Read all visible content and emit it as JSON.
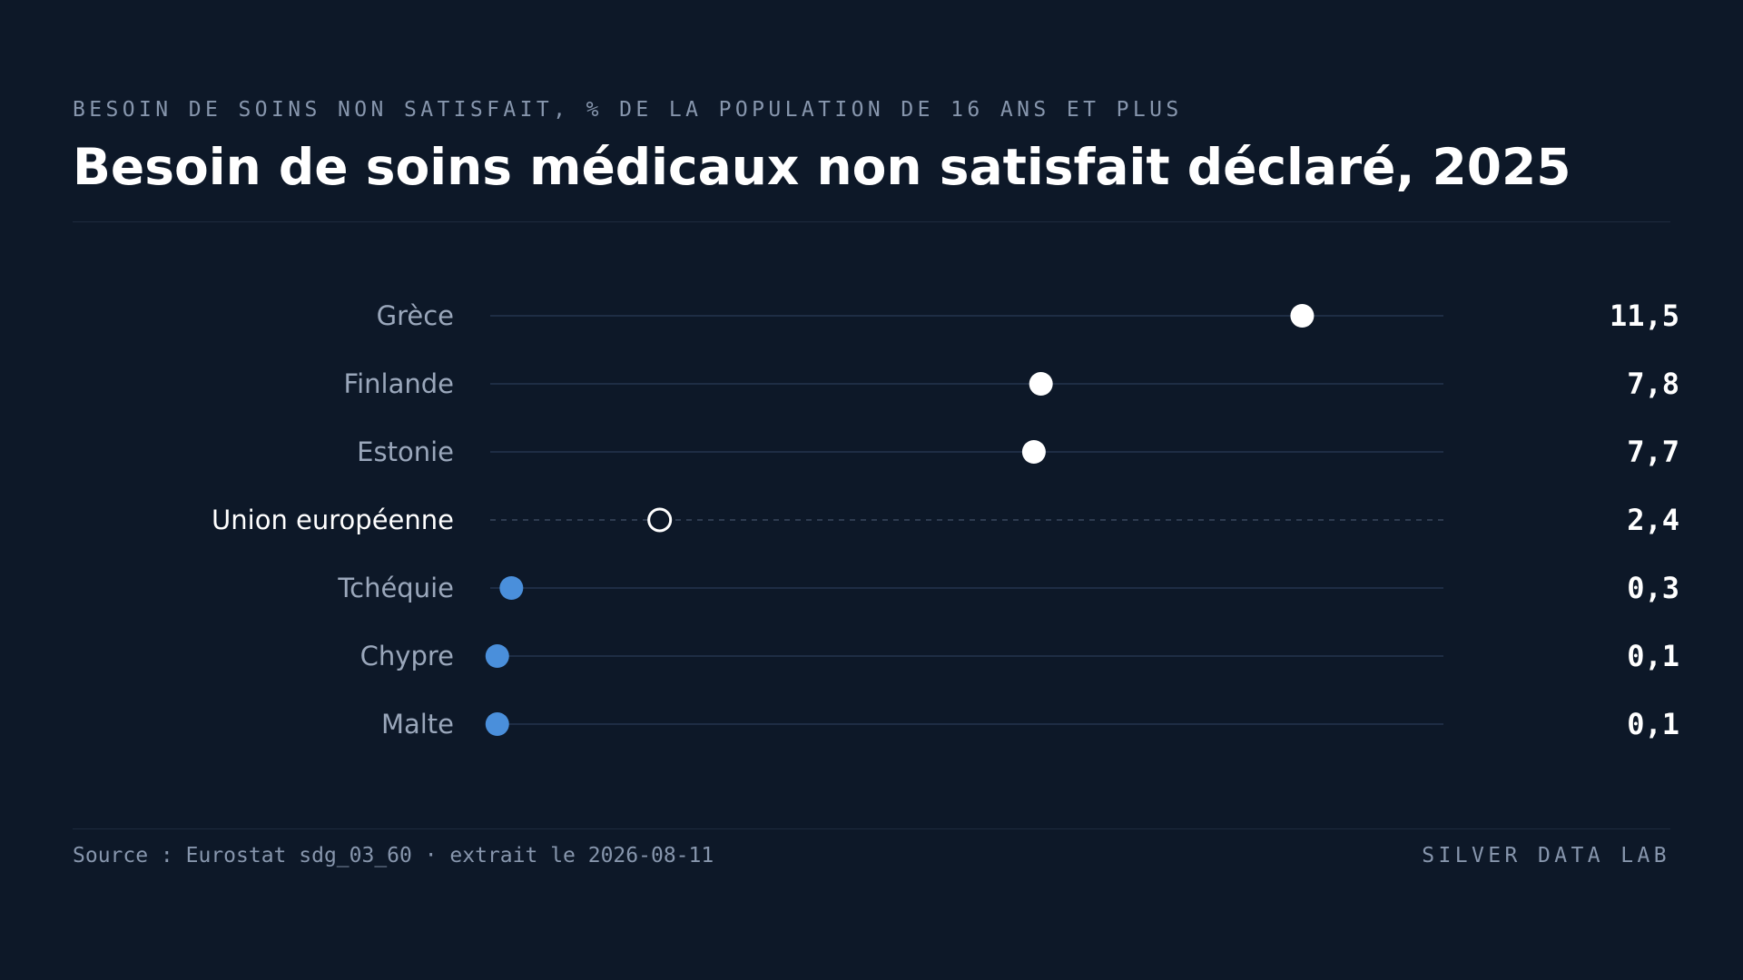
{
  "header": {
    "kicker": "BESOIN DE SOINS NON SATISFAIT, % DE LA POPULATION DE 16 ANS ET PLUS",
    "title": "Besoin de soins médicaux non satisfait déclaré, 2025"
  },
  "footer": {
    "source": "Source : Eurostat sdg_03_60 · extrait le 2026-08-11",
    "brand": "SILVER DATA LAB"
  },
  "colors": {
    "background": "#0d1828",
    "high": "#ffffff",
    "low": "#4a8fdb",
    "reference": "#ffffff",
    "track": "#1e2d44",
    "label": "#9aa7bb",
    "reference_label": "#ffffff"
  },
  "chart_data": {
    "type": "dot",
    "unit": "%",
    "xlim": [
      0,
      13.5
    ],
    "grid": false,
    "rows": [
      {
        "category": "Grèce",
        "value": 11.5,
        "value_label": "11,5",
        "style": "high"
      },
      {
        "category": "Finlande",
        "value": 7.8,
        "value_label": "7,8",
        "style": "high"
      },
      {
        "category": "Estonie",
        "value": 7.7,
        "value_label": "7,7",
        "style": "high"
      },
      {
        "category": "Union européenne",
        "value": 2.4,
        "value_label": "2,4",
        "style": "reference"
      },
      {
        "category": "Tchéquie",
        "value": 0.3,
        "value_label": "0,3",
        "style": "low"
      },
      {
        "category": "Chypre",
        "value": 0.1,
        "value_label": "0,1",
        "style": "low"
      },
      {
        "category": "Malte",
        "value": 0.1,
        "value_label": "0,1",
        "style": "low"
      }
    ]
  }
}
